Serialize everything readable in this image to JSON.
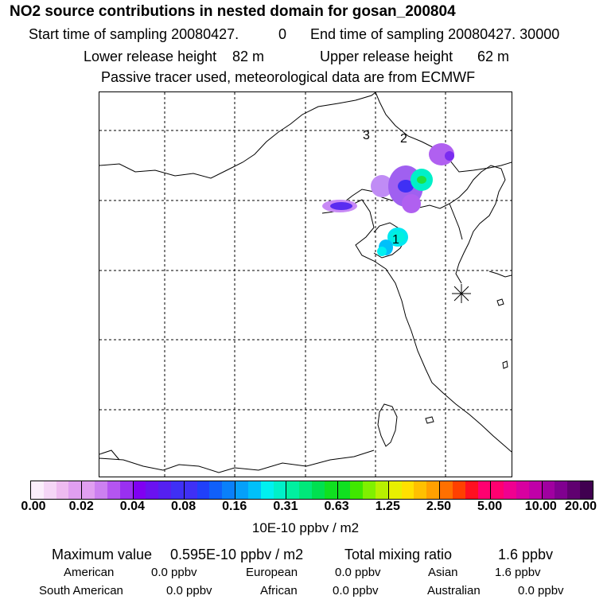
{
  "header": {
    "title": "NO2 source contributions in nested domain for gosan_200804",
    "start_label": "Start time of sampling 20080427.",
    "start_hour": "0",
    "end_label": "End time of sampling 20080427. 30000",
    "lower_label": "Lower release height",
    "lower_value": "82 m",
    "upper_label": "Upper release height",
    "upper_value": "62 m",
    "info": "Passive tracer used, meteorological data are from ECMWF"
  },
  "map": {
    "source_labels": [
      "1",
      "2",
      "3"
    ],
    "receptor_icon": "asterisk-star-icon"
  },
  "colorbar": {
    "ticks": [
      "0.00",
      "0.02",
      "0.04",
      "0.08",
      "0.16",
      "0.31",
      "0.63",
      "1.25",
      "2.50",
      "5.00",
      "10.00",
      "20.00"
    ],
    "units": "10E-10 ppbv / m2",
    "colors": [
      "#fbeefb",
      "#f5d6f6",
      "#eebbf0",
      "#e09ff0",
      "#cc80f0",
      "#b455f0",
      "#9a30f0",
      "#8000f2",
      "#6a12f0",
      "#5520f0",
      "#3f30f5",
      "#2040fa",
      "#1060fa",
      "#0a80fa",
      "#05a0fa",
      "#00c0fa",
      "#00f0f0",
      "#00f0c8",
      "#00f0a0",
      "#00e87a",
      "#00e050",
      "#10e020",
      "#40e800",
      "#80f000",
      "#b8f000",
      "#e8f000",
      "#ffe000",
      "#ffc000",
      "#ffa000",
      "#ff7000",
      "#ff4000",
      "#ff1020",
      "#ff0070",
      "#f00090",
      "#d800a0",
      "#c000a8",
      "#a000a0",
      "#800090",
      "#600070",
      "#400050"
    ]
  },
  "summary": {
    "max_label": "Maximum value",
    "max_value": "0.595E-10 ppbv / m2",
    "total_label": "Total mixing ratio",
    "total_value": "1.6 ppbv",
    "regions": [
      {
        "name": "American",
        "value": "0.0 ppbv"
      },
      {
        "name": "European",
        "value": "0.0 ppbv"
      },
      {
        "name": "Asian",
        "value": "1.6 ppbv"
      },
      {
        "name": "South American",
        "value": "0.0 ppbv"
      },
      {
        "name": "African",
        "value": "0.0 ppbv"
      },
      {
        "name": "Australian",
        "value": "0.0 ppbv"
      }
    ]
  }
}
